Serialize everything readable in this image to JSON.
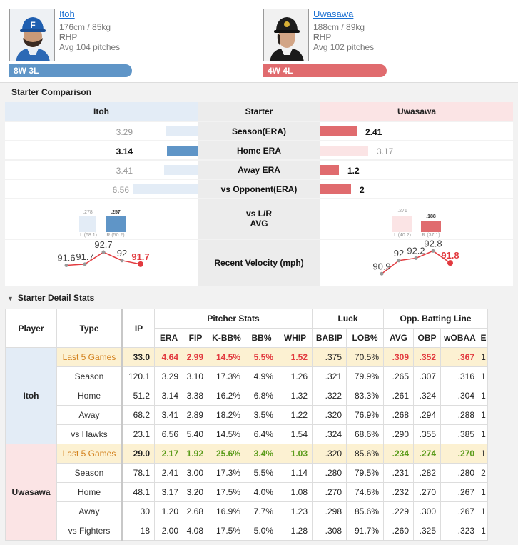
{
  "top_link": "...py",
  "left_pitcher": {
    "name": "Itoh",
    "size": "176cm / 85kg",
    "hand_bold": "R",
    "hand_rest": "HP",
    "avg_pitches": "Avg 104 pitches",
    "record": "8W 3L",
    "cap_letter": "F"
  },
  "right_pitcher": {
    "name": "Uwasawa",
    "size": "188cm / 89kg",
    "hand_bold": "R",
    "hand_rest": "HP",
    "avg_pitches": "Avg 102 pitches",
    "record": "4W 4L"
  },
  "comparison": {
    "title": "Starter Comparison",
    "header": {
      "left": "Itoh",
      "center": "Starter",
      "right": "Uwasawa"
    },
    "rows": [
      {
        "label": "Season(ERA)",
        "left": "3.29",
        "right": "2.41",
        "left_val": 3.29,
        "right_val": 2.41,
        "better": "right"
      },
      {
        "label": "Home ERA",
        "left": "3.14",
        "right": "3.17",
        "left_val": 3.14,
        "right_val": 3.17,
        "better": "left"
      },
      {
        "label": "Away ERA",
        "left": "3.41",
        "right": "1.2",
        "left_val": 3.41,
        "right_val": 1.2,
        "better": "right"
      },
      {
        "label": "vs Opponent(ERA)",
        "left": "6.56",
        "right": "2",
        "left_val": 6.56,
        "right_val": 2,
        "better": "right"
      }
    ],
    "lr": {
      "label_1": "vs L/R",
      "label_2": "AVG",
      "left": {
        "l_avg": ".278",
        "l_tag": "L (68.1)",
        "r_avg": ".257",
        "r_tag": "R (50.2)",
        "l_val": 0.278,
        "r_val": 0.257
      },
      "right": {
        "l_avg": ".271",
        "l_tag": "L (40.2)",
        "r_avg": ".188",
        "r_tag": "R (37.1)",
        "l_val": 0.271,
        "r_val": 0.188
      }
    },
    "velocity": {
      "label": "Recent Velocity (mph)",
      "left": [
        {
          "v": 91.6,
          "t": "91.6"
        },
        {
          "v": 91.7,
          "t": "91.7"
        },
        {
          "v": 92.7,
          "t": "92.7"
        },
        {
          "v": 92,
          "t": "92"
        },
        {
          "v": 91.7,
          "t": "91.7"
        }
      ],
      "right": [
        {
          "v": 90.9,
          "t": "90.9"
        },
        {
          "v": 92,
          "t": "92"
        },
        {
          "v": 92.2,
          "t": "92.2"
        },
        {
          "v": 92.8,
          "t": "92.8"
        },
        {
          "v": 91.8,
          "t": "91.8"
        }
      ]
    }
  },
  "detail": {
    "title": "Starter Detail Stats",
    "headers": {
      "player": "Player",
      "type": "Type",
      "ip": "IP",
      "group_pitcher": "Pitcher Stats",
      "group_luck": "Luck",
      "group_opp": "Opp. Batting Line",
      "cols": [
        "ERA",
        "FIP",
        "K-BB%",
        "BB%",
        "WHIP",
        "BABIP",
        "LOB%",
        "AVG",
        "OBP",
        "wOBAA",
        "E"
      ]
    },
    "players": [
      {
        "name": "Itoh",
        "rows": [
          {
            "type": "Last 5 Games",
            "ip": "33.0",
            "vals": [
              "4.64",
              "2.99",
              "14.5%",
              "5.5%",
              "1.52",
              ".375",
              "70.5%",
              ".309",
              ".352",
              ".367",
              "1"
            ]
          },
          {
            "type": "Season",
            "ip": "120.1",
            "vals": [
              "3.29",
              "3.10",
              "17.3%",
              "4.9%",
              "1.26",
              ".321",
              "79.9%",
              ".265",
              ".307",
              ".316",
              "1"
            ]
          },
          {
            "type": "Home",
            "ip": "51.2",
            "vals": [
              "3.14",
              "3.38",
              "16.2%",
              "6.8%",
              "1.32",
              ".322",
              "83.3%",
              ".261",
              ".324",
              ".304",
              "1"
            ]
          },
          {
            "type": "Away",
            "ip": "68.2",
            "vals": [
              "3.41",
              "2.89",
              "18.2%",
              "3.5%",
              "1.22",
              ".320",
              "76.9%",
              ".268",
              ".294",
              ".288",
              "1"
            ]
          },
          {
            "type": "vs Hawks",
            "ip": "23.1",
            "vals": [
              "6.56",
              "5.40",
              "14.5%",
              "6.4%",
              "1.54",
              ".324",
              "68.6%",
              ".290",
              ".355",
              ".385",
              "1"
            ]
          }
        ]
      },
      {
        "name": "Uwasawa",
        "rows": [
          {
            "type": "Last 5 Games",
            "ip": "29.0",
            "vals": [
              "2.17",
              "1.92",
              "25.6%",
              "3.4%",
              "1.03",
              ".320",
              "85.6%",
              ".234",
              ".274",
              ".270",
              "1"
            ]
          },
          {
            "type": "Season",
            "ip": "78.1",
            "vals": [
              "2.41",
              "3.00",
              "17.3%",
              "5.5%",
              "1.14",
              ".280",
              "79.5%",
              ".231",
              ".282",
              ".280",
              "2"
            ]
          },
          {
            "type": "Home",
            "ip": "48.1",
            "vals": [
              "3.17",
              "3.20",
              "17.5%",
              "4.0%",
              "1.08",
              ".270",
              "74.6%",
              ".232",
              ".270",
              ".267",
              "1"
            ]
          },
          {
            "type": "Away",
            "ip": "30",
            "vals": [
              "1.20",
              "2.68",
              "16.9%",
              "7.7%",
              "1.23",
              ".298",
              "85.6%",
              ".229",
              ".300",
              ".267",
              "1"
            ]
          },
          {
            "type": "vs Fighters",
            "ip": "18",
            "vals": [
              "2.00",
              "4.08",
              "17.5%",
              "5.0%",
              "1.28",
              ".308",
              "91.7%",
              ".260",
              ".325",
              ".323",
              "1"
            ]
          }
        ]
      }
    ],
    "last5_styles": {
      "Itoh": [
        "red",
        "red",
        "red",
        "red",
        "red",
        "",
        "",
        "red",
        "red",
        "red",
        ""
      ],
      "Uwasawa": [
        "grn",
        "grn",
        "grn",
        "grn",
        "grn",
        "",
        "",
        "grn",
        "grn",
        "grn",
        ""
      ]
    }
  },
  "colors": {
    "blue": "#5f95c7",
    "red": "#e06b6e",
    "light_blue": "#e3ecf6",
    "light_red": "#fbe4e5",
    "velocity_red": "#e23a3f"
  }
}
